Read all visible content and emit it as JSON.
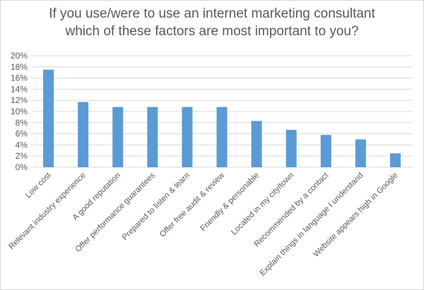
{
  "chart_data": {
    "type": "bar",
    "title_lines": [
      "If you use/were to use an internet marketing consultant",
      "which of these factors are most important to you?"
    ],
    "categories": [
      "Low cost",
      "Relevant industry experience",
      "A good reputation",
      "Offer performance guarantees",
      "Prepared to listen & learn",
      "Offer free audit & review",
      "Friendly & personable",
      "Located in my city/town",
      "Recommended by a contact",
      "Explain things in language I understand",
      "Website appears high in Google"
    ],
    "values": [
      17.5,
      11.7,
      10.8,
      10.8,
      10.8,
      10.8,
      8.3,
      6.7,
      5.8,
      5.0,
      2.5
    ],
    "unit": "%",
    "ylim": [
      0,
      20
    ],
    "yticks": [
      "0%",
      "2%",
      "4%",
      "6%",
      "8%",
      "10%",
      "12%",
      "14%",
      "16%",
      "18%",
      "20%"
    ],
    "grid": true,
    "legend": "none",
    "bar_color": "#5b9bd5"
  }
}
